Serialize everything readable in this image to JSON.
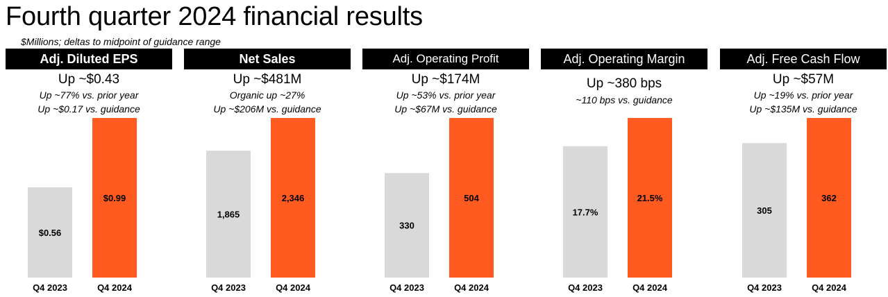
{
  "title": "Fourth quarter 2024 financial results",
  "subtitle": "$Millions; deltas to midpoint of guidance range",
  "colors": {
    "prior": "#d9d9d9",
    "current": "#ff5a1f",
    "header_bg": "#000000",
    "header_text": "#ffffff"
  },
  "panels": [
    {
      "header": "Adj. Diluted EPS",
      "headline": "Up ~$0.43",
      "notes": [
        "Up ~77% vs. prior year",
        "Up ~$0.17 vs. guidance"
      ]
    },
    {
      "header": "Net Sales",
      "headline": "Up ~$481M",
      "notes": [
        "Organic up ~27%",
        "Up ~$206M vs. guidance"
      ]
    },
    {
      "header": "Adj. Operating Profit",
      "headline": "Up ~$174M",
      "notes": [
        "Up ~53% vs. prior year",
        "Up ~$67M vs. guidance"
      ]
    },
    {
      "header": "Adj. Operating Margin",
      "headline": "Up ~380 bps",
      "notes": [
        "~110 bps vs. guidance",
        ""
      ]
    },
    {
      "header": "Adj. Free Cash Flow",
      "headline": "Up ~$57M",
      "notes": [
        "Up ~19% vs. prior year",
        "Up ~$135M vs. guidance"
      ]
    }
  ],
  "chart_data": [
    {
      "type": "bar",
      "title": "Adj. Diluted EPS",
      "categories": [
        "Q4 2023",
        "Q4 2024"
      ],
      "values": [
        0.56,
        0.99
      ],
      "labels": [
        "$0.56",
        "$0.99"
      ],
      "ylim": [
        0,
        0.99
      ]
    },
    {
      "type": "bar",
      "title": "Net Sales",
      "categories": [
        "Q4 2023",
        "Q4 2024"
      ],
      "values": [
        1865,
        2346
      ],
      "labels": [
        "1,865",
        "2,346"
      ],
      "ylim": [
        0,
        2346
      ]
    },
    {
      "type": "bar",
      "title": "Adj. Operating Profit",
      "categories": [
        "Q4 2023",
        "Q4 2024"
      ],
      "values": [
        330,
        504
      ],
      "labels": [
        "330",
        "504"
      ],
      "ylim": [
        0,
        504
      ]
    },
    {
      "type": "bar",
      "title": "Adj. Operating Margin",
      "categories": [
        "Q4 2023",
        "Q4 2024"
      ],
      "values": [
        17.7,
        21.5
      ],
      "labels": [
        "17.7%",
        "21.5%"
      ],
      "ylim": [
        0,
        21.5
      ]
    },
    {
      "type": "bar",
      "title": "Adj. Free Cash Flow",
      "categories": [
        "Q4 2023",
        "Q4 2024"
      ],
      "values": [
        305,
        362
      ],
      "labels": [
        "305",
        "362"
      ],
      "ylim": [
        0,
        362
      ]
    }
  ]
}
